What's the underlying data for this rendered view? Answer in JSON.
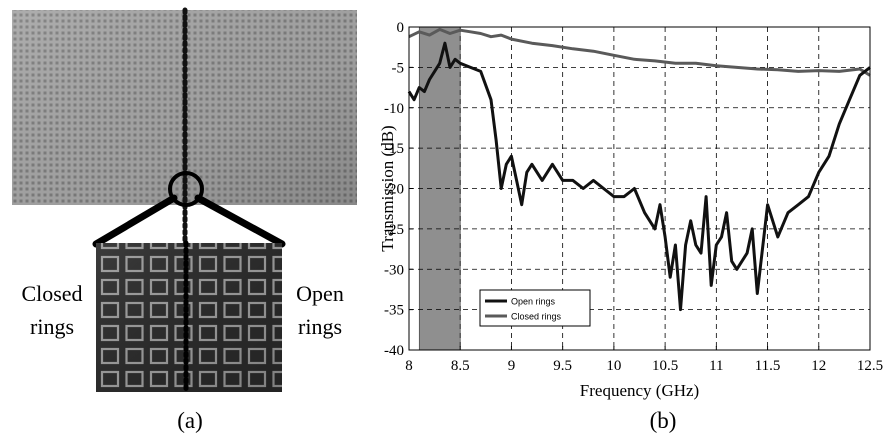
{
  "panel_a": {
    "left_label_lines": [
      "Closed",
      "rings"
    ],
    "right_label_lines": [
      "Open",
      "rings"
    ],
    "caption": "(a)"
  },
  "panel_b": {
    "caption": "(b)"
  },
  "chart_data": {
    "type": "line",
    "title": "",
    "xlabel": "Frequency (GHz)",
    "ylabel": "Transmission (dB)",
    "xlim": [
      8,
      12.5
    ],
    "ylim": [
      -40,
      0
    ],
    "xticks": [
      "8",
      "8.5",
      "9",
      "9.5",
      "10",
      "10.5",
      "11",
      "11.5",
      "12",
      "12.5"
    ],
    "yticks": [
      "0",
      "-5",
      "-10",
      "-15",
      "-20",
      "-25",
      "-30",
      "-35",
      "-40"
    ],
    "grid": true,
    "legend_position": "bottom-left",
    "highlight_band": {
      "x_start": 8.1,
      "x_end": 8.5,
      "color": "#8f8f8f"
    },
    "series": [
      {
        "name": "Open rings",
        "color": "#111111",
        "x": [
          8.0,
          8.05,
          8.1,
          8.15,
          8.2,
          8.25,
          8.3,
          8.35,
          8.4,
          8.45,
          8.5,
          8.6,
          8.7,
          8.8,
          8.85,
          8.9,
          8.95,
          9.0,
          9.05,
          9.1,
          9.15,
          9.2,
          9.3,
          9.4,
          9.5,
          9.6,
          9.7,
          9.8,
          9.9,
          10.0,
          10.1,
          10.2,
          10.3,
          10.4,
          10.45,
          10.5,
          10.55,
          10.6,
          10.65,
          10.7,
          10.75,
          10.8,
          10.85,
          10.9,
          10.95,
          11.0,
          11.05,
          11.1,
          11.15,
          11.2,
          11.3,
          11.35,
          11.4,
          11.5,
          11.6,
          11.7,
          11.8,
          11.9,
          12.0,
          12.1,
          12.2,
          12.3,
          12.4,
          12.5
        ],
        "y": [
          -8,
          -9,
          -7.5,
          -8,
          -6.5,
          -5.5,
          -4.5,
          -2,
          -5,
          -4,
          -4.5,
          -5,
          -5.5,
          -9,
          -14,
          -20,
          -17,
          -16,
          -19,
          -22,
          -18,
          -17,
          -19,
          -17,
          -19,
          -19,
          -20,
          -19,
          -20,
          -21,
          -21,
          -20,
          -23,
          -25,
          -22,
          -26,
          -31,
          -27,
          -35,
          -27,
          -24,
          -27,
          -28,
          -21,
          -32,
          -27,
          -26,
          -23,
          -29,
          -30,
          -28,
          -25,
          -33,
          -22,
          -26,
          -23,
          -22,
          -21,
          -18,
          -16,
          -12,
          -9,
          -6,
          -5
        ]
      },
      {
        "name": "Closed rings",
        "color": "#5a5a5a",
        "x": [
          8.0,
          8.1,
          8.2,
          8.3,
          8.4,
          8.5,
          8.6,
          8.7,
          8.8,
          8.9,
          9.0,
          9.2,
          9.4,
          9.6,
          9.8,
          10.0,
          10.2,
          10.4,
          10.6,
          10.8,
          11.0,
          11.2,
          11.4,
          11.6,
          11.8,
          12.0,
          12.2,
          12.4,
          12.5
        ],
        "y": [
          -1.2,
          -0.6,
          -1.0,
          -0.3,
          -0.8,
          -0.4,
          -0.6,
          -0.8,
          -1.2,
          -1.0,
          -1.5,
          -2.0,
          -2.3,
          -2.7,
          -3.0,
          -3.5,
          -4.0,
          -4.2,
          -4.5,
          -4.5,
          -4.8,
          -5.0,
          -5.2,
          -5.3,
          -5.5,
          -5.4,
          -5.5,
          -5.2,
          -6.0
        ]
      }
    ]
  }
}
